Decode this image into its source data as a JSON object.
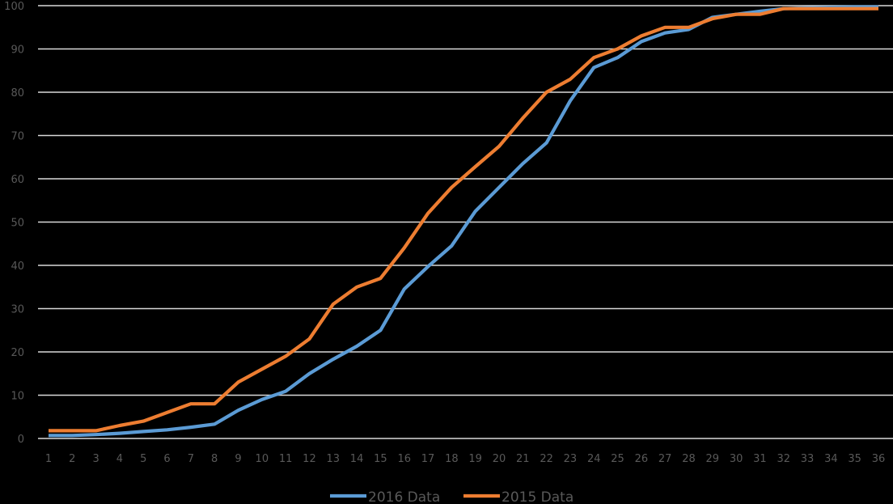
{
  "chart_data": {
    "type": "line",
    "title": "",
    "xlabel": "",
    "ylabel": "",
    "ylim": [
      0,
      100
    ],
    "yticks": [
      0,
      10,
      20,
      30,
      40,
      50,
      60,
      70,
      80,
      90,
      100
    ],
    "grid": true,
    "legend_position": "bottom",
    "x": [
      1,
      2,
      3,
      4,
      5,
      6,
      7,
      8,
      9,
      10,
      11,
      12,
      13,
      14,
      15,
      16,
      17,
      18,
      19,
      20,
      21,
      22,
      23,
      24,
      25,
      26,
      27,
      28,
      29,
      30,
      31,
      32,
      33,
      34,
      35,
      36
    ],
    "series": [
      {
        "name": "2016 Data",
        "color": "#5B9BD5",
        "values": [
          0.7,
          0.7,
          0.9,
          1.2,
          1.6,
          2.0,
          2.6,
          3.3,
          6.5,
          9.0,
          10.9,
          15.0,
          18.3,
          21.3,
          25.0,
          34.5,
          39.7,
          44.5,
          52.5,
          58.0,
          63.5,
          68.3,
          78.0,
          85.7,
          88.0,
          91.7,
          93.7,
          94.5,
          97.3,
          98.0,
          98.7,
          99.3,
          99.5,
          99.6,
          99.7,
          99.7
        ]
      },
      {
        "name": "2015 Data",
        "color": "#ED7D31",
        "values": [
          1.8,
          1.8,
          1.8,
          3.0,
          4.0,
          6.0,
          8.0,
          8.0,
          13.0,
          16.0,
          19.0,
          23.0,
          31.0,
          35.0,
          37.0,
          44.0,
          52.0,
          58.0,
          62.8,
          67.5,
          74.0,
          80.0,
          83.0,
          88.0,
          90.0,
          93.0,
          95.0,
          95.0,
          97.0,
          98.0,
          98.0,
          99.3,
          99.3,
          99.3,
          99.3,
          99.3
        ]
      }
    ]
  }
}
